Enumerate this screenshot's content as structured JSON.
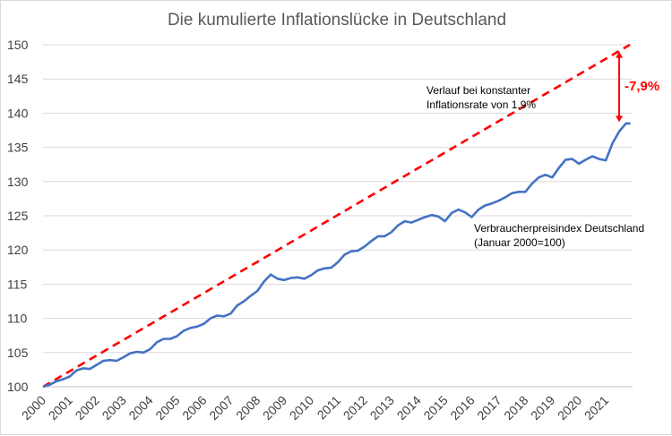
{
  "chart_data": {
    "type": "line",
    "title": "Die kumulierte Inflationslücke in Deutschland",
    "xlabel": "",
    "ylabel": "",
    "ylim": [
      100,
      150
    ],
    "xlim": [
      2000,
      2022
    ],
    "y_ticks": [
      "100",
      "105",
      "110",
      "115",
      "120",
      "125",
      "130",
      "135",
      "140",
      "145",
      "150"
    ],
    "x_ticks": [
      "2000",
      "2001",
      "2002",
      "2003",
      "2004",
      "2005",
      "2006",
      "2007",
      "2008",
      "2009",
      "2010",
      "2011",
      "2012",
      "2013",
      "2014",
      "2015",
      "2016",
      "2017",
      "2018",
      "2019",
      "2020",
      "2021"
    ],
    "grid": "horizontal",
    "series": [
      {
        "label_lines": [
          "Verbraucherpreisindex Deutschland",
          "(Januar 2000=100)"
        ],
        "color": "#4472c4",
        "style": "solid",
        "points": [
          [
            2000.0,
            100.0
          ],
          [
            2000.25,
            100.3
          ],
          [
            2000.5,
            100.8
          ],
          [
            2000.75,
            101.1
          ],
          [
            2001.0,
            101.5
          ],
          [
            2001.25,
            102.4
          ],
          [
            2001.5,
            102.7
          ],
          [
            2001.75,
            102.6
          ],
          [
            2002.0,
            103.2
          ],
          [
            2002.25,
            103.8
          ],
          [
            2002.5,
            103.9
          ],
          [
            2002.75,
            103.8
          ],
          [
            2003.0,
            104.3
          ],
          [
            2003.25,
            104.9
          ],
          [
            2003.5,
            105.1
          ],
          [
            2003.75,
            105.0
          ],
          [
            2004.0,
            105.5
          ],
          [
            2004.25,
            106.5
          ],
          [
            2004.5,
            107.0
          ],
          [
            2004.75,
            107.0
          ],
          [
            2005.0,
            107.4
          ],
          [
            2005.25,
            108.2
          ],
          [
            2005.5,
            108.6
          ],
          [
            2005.75,
            108.8
          ],
          [
            2006.0,
            109.2
          ],
          [
            2006.25,
            110.0
          ],
          [
            2006.5,
            110.4
          ],
          [
            2006.75,
            110.3
          ],
          [
            2007.0,
            110.7
          ],
          [
            2007.25,
            111.9
          ],
          [
            2007.5,
            112.5
          ],
          [
            2007.75,
            113.3
          ],
          [
            2008.0,
            114.0
          ],
          [
            2008.25,
            115.4
          ],
          [
            2008.5,
            116.4
          ],
          [
            2008.75,
            115.8
          ],
          [
            2009.0,
            115.6
          ],
          [
            2009.25,
            115.9
          ],
          [
            2009.5,
            116.0
          ],
          [
            2009.75,
            115.8
          ],
          [
            2010.0,
            116.3
          ],
          [
            2010.25,
            117.0
          ],
          [
            2010.5,
            117.3
          ],
          [
            2010.75,
            117.4
          ],
          [
            2011.0,
            118.2
          ],
          [
            2011.25,
            119.3
          ],
          [
            2011.5,
            119.8
          ],
          [
            2011.75,
            119.9
          ],
          [
            2012.0,
            120.5
          ],
          [
            2012.25,
            121.3
          ],
          [
            2012.5,
            122.0
          ],
          [
            2012.75,
            122.0
          ],
          [
            2013.0,
            122.6
          ],
          [
            2013.25,
            123.6
          ],
          [
            2013.5,
            124.2
          ],
          [
            2013.75,
            124.0
          ],
          [
            2014.0,
            124.4
          ],
          [
            2014.25,
            124.8
          ],
          [
            2014.5,
            125.1
          ],
          [
            2014.75,
            124.9
          ],
          [
            2015.0,
            124.2
          ],
          [
            2015.25,
            125.4
          ],
          [
            2015.5,
            125.9
          ],
          [
            2015.75,
            125.5
          ],
          [
            2016.0,
            124.8
          ],
          [
            2016.25,
            125.9
          ],
          [
            2016.5,
            126.5
          ],
          [
            2016.75,
            126.8
          ],
          [
            2017.0,
            127.2
          ],
          [
            2017.25,
            127.7
          ],
          [
            2017.5,
            128.3
          ],
          [
            2017.75,
            128.5
          ],
          [
            2018.0,
            128.5
          ],
          [
            2018.25,
            129.7
          ],
          [
            2018.5,
            130.6
          ],
          [
            2018.75,
            131.0
          ],
          [
            2019.0,
            130.6
          ],
          [
            2019.25,
            132.0
          ],
          [
            2019.5,
            133.2
          ],
          [
            2019.75,
            133.3
          ],
          [
            2020.0,
            132.6
          ],
          [
            2020.25,
            133.2
          ],
          [
            2020.5,
            133.7
          ],
          [
            2020.75,
            133.3
          ],
          [
            2021.0,
            133.1
          ],
          [
            2021.25,
            135.6
          ],
          [
            2021.5,
            137.3
          ],
          [
            2021.75,
            138.5
          ],
          [
            2021.92,
            138.5
          ]
        ]
      },
      {
        "label_lines": [
          "Verlauf bei konstanter",
          "Inflationsrate von 1,9%"
        ],
        "color": "#ff0000",
        "style": "dashed",
        "points": [
          [
            2000.0,
            100.0
          ],
          [
            2021.9,
            150.0
          ]
        ]
      }
    ],
    "annotation": {
      "text": "-7,9%",
      "color": "#ff0000",
      "arrow_x": 2021.5,
      "arrow_y": [
        138.7,
        149.0
      ]
    }
  }
}
